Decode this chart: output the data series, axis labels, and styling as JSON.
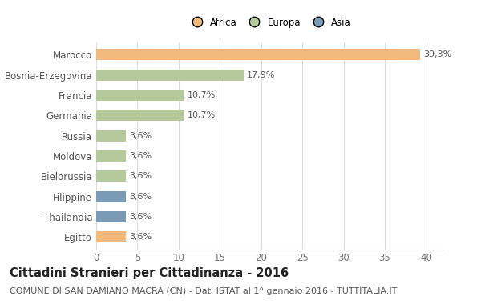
{
  "categories": [
    "Marocco",
    "Bosnia-Erzegovina",
    "Francia",
    "Germania",
    "Russia",
    "Moldova",
    "Bielorussia",
    "Filippine",
    "Thailandia",
    "Egitto"
  ],
  "values": [
    39.3,
    17.9,
    10.7,
    10.7,
    3.6,
    3.6,
    3.6,
    3.6,
    3.6,
    3.6
  ],
  "labels": [
    "39,3%",
    "17,9%",
    "10,7%",
    "10,7%",
    "3,6%",
    "3,6%",
    "3,6%",
    "3,6%",
    "3,6%",
    "3,6%"
  ],
  "colors": [
    "#F2B97D",
    "#B5C99A",
    "#B5C99A",
    "#B5C99A",
    "#B5C99A",
    "#B5C99A",
    "#B5C99A",
    "#7A9BB5",
    "#7A9BB5",
    "#F2B97D"
  ],
  "legend_labels": [
    "Africa",
    "Europa",
    "Asia"
  ],
  "legend_colors": [
    "#F2B97D",
    "#B5C99A",
    "#7A9BB5"
  ],
  "title": "Cittadini Stranieri per Cittadinanza - 2016",
  "subtitle": "COMUNE DI SAN DAMIANO MACRA (CN) - Dati ISTAT al 1° gennaio 2016 - TUTTITALIA.IT",
  "xlim": [
    0,
    42
  ],
  "xticks": [
    0,
    5,
    10,
    15,
    20,
    25,
    30,
    35,
    40
  ],
  "background_color": "#ffffff",
  "grid_color": "#dddddd",
  "bar_height": 0.55,
  "title_fontsize": 10.5,
  "subtitle_fontsize": 8,
  "tick_fontsize": 8.5,
  "label_fontsize": 8,
  "legend_fontsize": 8.5
}
